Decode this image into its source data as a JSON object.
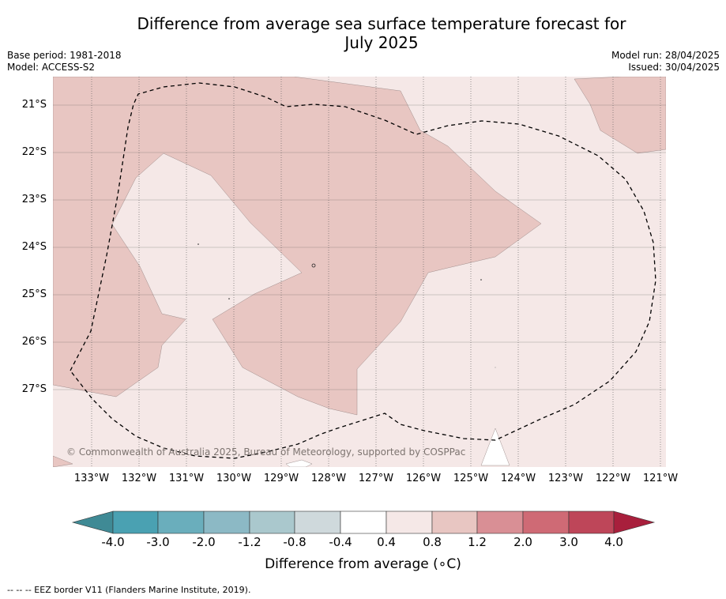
{
  "title_line1": "Difference from average sea surface temperature forecast for",
  "title_line2": "July 2025",
  "base_period": "Base period: 1981-2018",
  "model": "Model: ACCESS-S2",
  "model_run": "Model run: 28/04/2025",
  "issued": "Issued: 30/04/2025",
  "copyright": "© Commonwealth of Australia 2025, Bureau of Meteorology, supported by COSPPac",
  "colorbar_title": "Difference from average (∘C)",
  "footnote": "--  --  -- EEZ border V11 (Flanders Marine Institute, 2019).",
  "lat_labels": [
    "21°S",
    "22°S",
    "23°S",
    "24°S",
    "25°S",
    "26°S",
    "27°S"
  ],
  "lon_labels": [
    "133°W",
    "132°W",
    "131°W",
    "130°W",
    "129°W",
    "128°W",
    "127°W",
    "126°W",
    "125°W",
    "124°W",
    "123°W",
    "122°W",
    "121°W"
  ],
  "colorbar": {
    "labels": [
      "-4.0",
      "-3.0",
      "-2.0",
      "-1.2",
      "-0.8",
      "-0.4",
      "0.4",
      "0.8",
      "1.2",
      "2.0",
      "3.0",
      "4.0"
    ],
    "colors": [
      "#3f8a95",
      "#4aa1b2",
      "#6aaebc",
      "#8cb9c5",
      "#aac8cd",
      "#cfd9dc",
      "#ffffff",
      "#f5e8e7",
      "#e8c6c2",
      "#d98f95",
      "#cf6a75",
      "#be4659",
      "#a81f3c"
    ]
  },
  "map_colors": {
    "band_04_08": "#f5e8e7",
    "band_08_12": "#e8c6c2",
    "grid": "#555555"
  }
}
